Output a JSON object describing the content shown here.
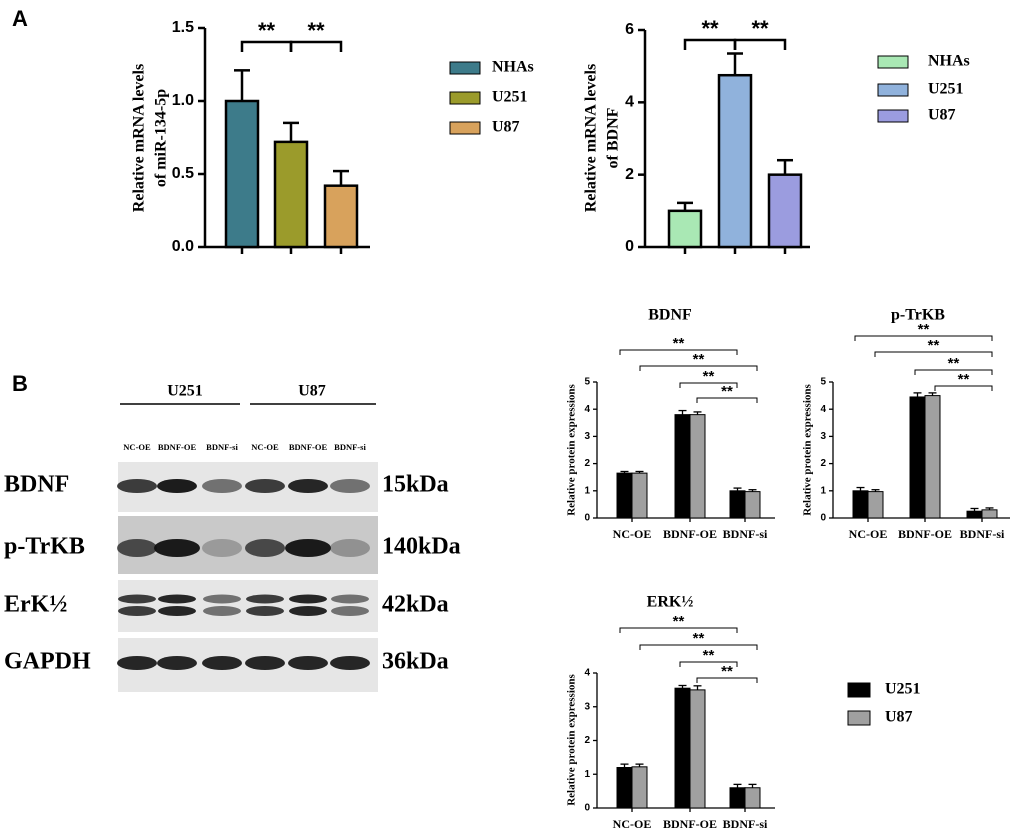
{
  "panel_labels": [
    "A",
    "B"
  ],
  "chart_data": [
    {
      "type": "bar",
      "ylabel": [
        "Relative mRNA levels",
        "of miR-134-5p"
      ],
      "categories": [
        "NHAs",
        "U251",
        "U87"
      ],
      "values": [
        1.0,
        0.72,
        0.42
      ],
      "errors": [
        0.21,
        0.13,
        0.1
      ],
      "colors": [
        "#3d7b8a",
        "#9b9b2b",
        "#d8a25c"
      ],
      "ylim": [
        0,
        1.5
      ],
      "yticks": [
        {
          "value": 0,
          "label": "0.0"
        },
        {
          "value": 0.5,
          "label": "0.5"
        },
        {
          "value": 1,
          "label": "1.0"
        },
        {
          "value": 1.5,
          "label": "1.5"
        }
      ],
      "annotations": [
        "**",
        "**"
      ]
    },
    {
      "type": "bar",
      "ylabel": [
        "Relative mRNA levels",
        "of BDNF"
      ],
      "categories": [
        "NHAs",
        "U251",
        "U87"
      ],
      "values": [
        1.0,
        4.75,
        2.0
      ],
      "errors": [
        0.22,
        0.6,
        0.4
      ],
      "colors": [
        "#a9e8b4",
        "#90b2dc",
        "#9b9cdf"
      ],
      "ylim": [
        0,
        6
      ],
      "yticks": [
        0,
        2,
        4,
        6
      ],
      "annotations": [
        "**",
        "**"
      ]
    },
    {
      "type": "grouped-bar",
      "title": "BDNF",
      "ylabel": [
        "Relative protein expressions"
      ],
      "categories": [
        "NC-OE",
        "BDNF-OE",
        "BDNF-si"
      ],
      "series": [
        {
          "color": "#000000",
          "values": [
            1.65,
            3.8,
            1.0
          ],
          "errors": [
            0.06,
            0.15,
            0.1
          ]
        },
        {
          "color": "#a0a0a0",
          "values": [
            1.65,
            3.8,
            0.97
          ],
          "errors": [
            0.06,
            0.1,
            0.07
          ]
        }
      ],
      "ylim": [
        0,
        5
      ],
      "yticks": [
        0,
        1,
        2,
        3,
        4,
        5
      ],
      "annotations": [
        "**",
        "**",
        "**",
        "**"
      ]
    },
    {
      "type": "grouped-bar",
      "title": "p-TrKB",
      "ylabel": [
        "Relative protein expressions"
      ],
      "categories": [
        "NC-OE",
        "BDNF-OE",
        "BDNF-si"
      ],
      "series": [
        {
          "color": "#000000",
          "values": [
            1.0,
            4.45,
            0.25
          ],
          "errors": [
            0.12,
            0.15,
            0.1
          ]
        },
        {
          "color": "#a0a0a0",
          "values": [
            0.97,
            4.5,
            0.3
          ],
          "errors": [
            0.07,
            0.1,
            0.07
          ]
        }
      ],
      "ylim": [
        0,
        5
      ],
      "yticks": [
        0,
        1,
        2,
        3,
        4,
        5
      ],
      "annotations": [
        "**",
        "**",
        "**",
        "**"
      ]
    },
    {
      "type": "grouped-bar",
      "title": "ERK½",
      "ylabel": [
        "Relative protein expressions"
      ],
      "categories": [
        "NC-OE",
        "BDNF-OE",
        "BDNF-si"
      ],
      "series": [
        {
          "name": "U251",
          "color": "#000000",
          "values": [
            1.2,
            3.55,
            0.6
          ],
          "errors": [
            0.1,
            0.08,
            0.1
          ]
        },
        {
          "name": "U87",
          "color": "#a0a0a0",
          "values": [
            1.22,
            3.5,
            0.6
          ],
          "errors": [
            0.08,
            0.12,
            0.1
          ]
        }
      ],
      "ylim": [
        0,
        4
      ],
      "yticks": [
        0,
        1,
        2,
        3,
        4
      ],
      "annotations": [
        "**",
        "**",
        "**",
        "**"
      ]
    }
  ],
  "blot": {
    "groups": [
      "U251",
      "U87"
    ],
    "lanes": [
      "NC-OE",
      "BDNF-OE",
      "BDNF-si",
      "NC-OE",
      "BDNF-OE",
      "BDNF-si"
    ],
    "rows": [
      {
        "label": "BDNF",
        "size": "15kDa"
      },
      {
        "label": "p-TrKB",
        "size": "140kDa"
      },
      {
        "label": "ErK½",
        "size": "42kDa"
      },
      {
        "label": "GAPDH",
        "size": "36kDa"
      }
    ]
  }
}
